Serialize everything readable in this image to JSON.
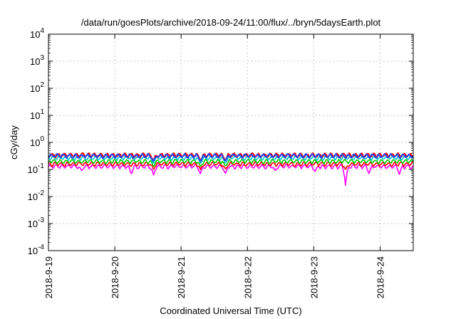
{
  "chart_data": {
    "type": "line",
    "title": "/data/run/goesPlots/archive/2018-09-24/11:00/flux/../bryn/5daysEarth.plot",
    "xlabel": "Coordinated Universal Time (UTC)",
    "ylabel": "cGy/day",
    "xlim": [
      "2018-09-19",
      "2018-09-24 12:00"
    ],
    "ylim": [
      0.0001,
      10000
    ],
    "yscale": "log",
    "grid": true,
    "xticks": [
      "2018-9-19",
      "2018-9-20",
      "2018-9-21",
      "2018-9-22",
      "2018-9-23",
      "2018-9-24"
    ],
    "yticks": [
      {
        "value": 0.0001,
        "base": "10",
        "exp": "-4"
      },
      {
        "value": 0.001,
        "base": "10",
        "exp": "-3"
      },
      {
        "value": 0.01,
        "base": "10",
        "exp": "-2"
      },
      {
        "value": 0.1,
        "base": "10",
        "exp": "-1"
      },
      {
        "value": 1,
        "base": "10",
        "exp": "0"
      },
      {
        "value": 10,
        "base": "10",
        "exp": "1"
      },
      {
        "value": 100,
        "base": "10",
        "exp": "2"
      },
      {
        "value": 1000,
        "base": "10",
        "exp": "3"
      },
      {
        "value": 10000,
        "base": "10",
        "exp": "4"
      }
    ],
    "series": [
      {
        "color": "#ff00ff",
        "base": 0.13,
        "dips": [
          [
            "2018-09-19 12:00",
            0.09
          ],
          [
            "2018-09-20 06:00",
            0.065
          ],
          [
            "2018-09-20 14:00",
            0.06
          ],
          [
            "2018-09-21 07:00",
            0.07
          ],
          [
            "2018-09-21 16:00",
            0.065
          ],
          [
            "2018-09-22 10:00",
            0.09
          ],
          [
            "2018-09-23 00:30",
            0.085
          ],
          [
            "2018-09-23 11:30",
            0.025
          ],
          [
            "2018-09-23 20:00",
            0.07
          ],
          [
            "2018-09-24 07:00",
            0.065
          ]
        ]
      },
      {
        "color": "#ff0000",
        "base": 0.16,
        "dips": [
          [
            "2018-09-20 14:00",
            0.1
          ],
          [
            "2018-09-21 07:00",
            0.1
          ],
          [
            "2018-09-21 16:00",
            0.1
          ],
          [
            "2018-09-23 11:30",
            0.1
          ]
        ]
      },
      {
        "color": "#00cc00",
        "base": 0.2,
        "dips": [
          [
            "2018-09-20 14:00",
            0.13
          ],
          [
            "2018-09-21 07:00",
            0.13
          ],
          [
            "2018-09-21 16:00",
            0.13
          ]
        ]
      },
      {
        "color": "#00cccc",
        "base": 0.27,
        "dips": [
          [
            "2018-09-20 14:00",
            0.17
          ],
          [
            "2018-09-21 07:00",
            0.17
          ],
          [
            "2018-09-21 16:00",
            0.17
          ]
        ]
      },
      {
        "color": "#ff0000",
        "base": 0.34,
        "dips": [
          [
            "2018-09-20 14:00",
            0.22
          ],
          [
            "2018-09-21 07:00",
            0.22
          ],
          [
            "2018-09-21 16:00",
            0.22
          ]
        ]
      },
      {
        "color": "#2244ee",
        "base": 0.32,
        "dips": [
          [
            "2018-09-20 14:00",
            0.2
          ],
          [
            "2018-09-21 07:00",
            0.2
          ],
          [
            "2018-09-21 16:00",
            0.2
          ]
        ]
      }
    ]
  }
}
